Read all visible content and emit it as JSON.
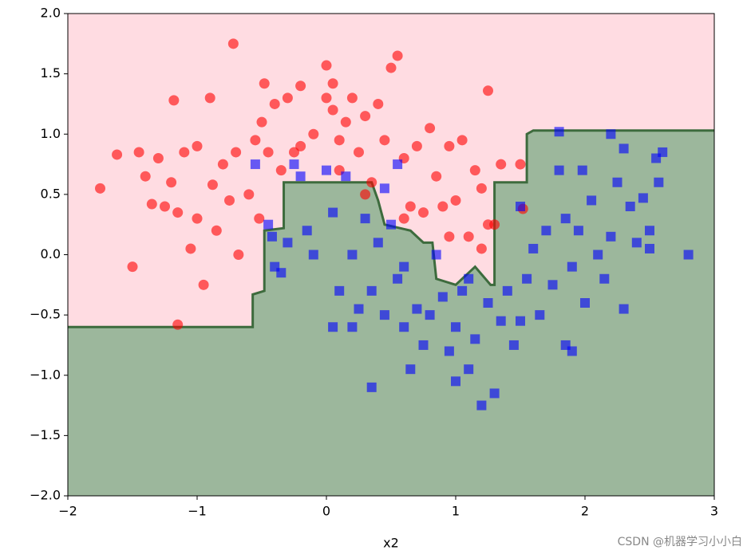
{
  "chart_data": {
    "type": "scatter",
    "xlabel": "x2",
    "xlim": [
      -2,
      3
    ],
    "ylim": [
      -2,
      2
    ],
    "xticks": [
      {
        "value": -2,
        "label": "−2"
      },
      {
        "value": -1,
        "label": "−1"
      },
      0,
      1,
      2,
      3
    ],
    "yticks": [
      {
        "value": -2,
        "label": "−2.0"
      },
      {
        "value": -1.5,
        "label": "−1.5"
      },
      {
        "value": -1,
        "label": "−1.0"
      },
      {
        "value": -0.5,
        "label": "−0.5"
      },
      {
        "value": 0,
        "label": "0.0"
      },
      {
        "value": 0.5,
        "label": "0.5"
      },
      {
        "value": 1,
        "label": "1.0"
      },
      {
        "value": 1.5,
        "label": "1.5"
      },
      {
        "value": 2,
        "label": "2.0"
      }
    ],
    "regions": {
      "upper_color": "#ffdce2",
      "lower_color": "#9cb79c",
      "boundary_color": "#3d6b3d",
      "boundary_x": [
        -2,
        -0.57,
        -0.57,
        -0.48,
        -0.48,
        -0.33,
        -0.33,
        0.35,
        0.4,
        0.45,
        0.65,
        0.75,
        0.82,
        0.85,
        1.0,
        1.15,
        1.27,
        1.3,
        1.3,
        1.55,
        1.55,
        1.6,
        3
      ],
      "boundary_y": [
        -0.6,
        -0.6,
        -0.33,
        -0.3,
        0.2,
        0.22,
        0.6,
        0.6,
        0.45,
        0.25,
        0.2,
        0.1,
        0.1,
        -0.2,
        -0.25,
        -0.1,
        -0.25,
        -0.25,
        0.6,
        0.6,
        1.0,
        1.03,
        1.03
      ]
    },
    "series": [
      {
        "marker": "circle",
        "color": "#ff0000",
        "x": [
          -1.75,
          -1.62,
          -1.5,
          -1.45,
          -1.4,
          -1.35,
          -1.3,
          -1.25,
          -1.2,
          -1.18,
          -1.15,
          -1.15,
          -1.1,
          -1.05,
          -1.0,
          -1.0,
          -0.95,
          -0.9,
          -0.88,
          -0.85,
          -0.8,
          -0.75,
          -0.72,
          -0.7,
          -0.68,
          -0.6,
          -0.55,
          -0.52,
          -0.5,
          -0.48,
          -0.45,
          -0.4,
          -0.35,
          -0.3,
          -0.2,
          -0.2,
          -0.1,
          0.0,
          0.0,
          0.05,
          0.1,
          0.15,
          0.2,
          0.25,
          0.3,
          0.35,
          0.4,
          0.45,
          0.5,
          0.55,
          0.6,
          0.65,
          0.7,
          0.75,
          0.8,
          0.85,
          0.9,
          0.95,
          1.0,
          1.05,
          1.1,
          1.15,
          1.2,
          1.25,
          1.2,
          1.3,
          1.35,
          1.5,
          1.52,
          0.1,
          0.3,
          0.6,
          0.95,
          1.25,
          -0.25,
          0.05
        ],
        "values": [
          0.55,
          0.83,
          -0.1,
          0.85,
          0.65,
          0.42,
          0.8,
          0.4,
          0.6,
          1.28,
          0.35,
          -0.58,
          0.85,
          0.05,
          0.3,
          0.9,
          -0.25,
          1.3,
          0.58,
          0.2,
          0.75,
          0.45,
          1.75,
          0.85,
          0.0,
          0.5,
          0.95,
          0.3,
          1.1,
          1.42,
          0.85,
          1.25,
          0.7,
          1.3,
          1.4,
          0.9,
          1.0,
          1.57,
          1.3,
          1.42,
          0.95,
          1.1,
          1.3,
          0.85,
          1.15,
          0.6,
          1.25,
          0.95,
          1.55,
          1.65,
          0.8,
          0.4,
          0.9,
          0.35,
          1.05,
          0.65,
          0.4,
          0.9,
          0.45,
          0.95,
          0.15,
          0.7,
          0.05,
          1.36,
          0.55,
          0.25,
          0.75,
          0.75,
          0.38,
          0.7,
          0.5,
          0.3,
          0.15,
          0.25,
          0.85,
          1.2
        ]
      },
      {
        "marker": "square",
        "color": "#0000ff",
        "x": [
          -0.55,
          -0.45,
          -0.42,
          -0.4,
          -0.35,
          -0.3,
          -0.25,
          -0.2,
          -0.15,
          -0.1,
          0.0,
          0.05,
          0.1,
          0.15,
          0.2,
          0.2,
          0.25,
          0.3,
          0.35,
          0.4,
          0.45,
          0.45,
          0.5,
          0.55,
          0.55,
          0.6,
          0.65,
          0.7,
          0.75,
          0.8,
          0.85,
          0.9,
          0.95,
          1.0,
          1.0,
          1.05,
          1.1,
          1.15,
          1.2,
          1.25,
          1.3,
          1.35,
          1.4,
          1.45,
          1.5,
          1.5,
          1.55,
          1.6,
          1.65,
          1.7,
          1.75,
          1.8,
          1.8,
          1.85,
          1.9,
          1.95,
          1.98,
          2.0,
          2.05,
          2.1,
          2.15,
          2.2,
          2.25,
          2.3,
          2.35,
          2.4,
          2.45,
          2.5,
          2.55,
          2.57,
          2.6,
          2.2,
          2.3,
          2.5,
          2.8,
          1.85,
          1.9,
          0.35,
          0.05,
          0.6,
          1.1
        ],
        "values": [
          0.75,
          0.25,
          0.15,
          -0.1,
          -0.15,
          0.1,
          0.75,
          0.65,
          0.2,
          0.0,
          0.7,
          0.35,
          -0.3,
          0.65,
          0.0,
          -0.6,
          -0.45,
          0.3,
          -0.3,
          0.1,
          0.55,
          -0.5,
          0.25,
          0.75,
          -0.2,
          -0.6,
          -0.95,
          -0.45,
          -0.75,
          -0.5,
          0.0,
          -0.35,
          -0.8,
          -0.6,
          -1.05,
          -0.3,
          -0.95,
          -0.7,
          -1.25,
          -0.4,
          -1.15,
          -0.55,
          -0.3,
          -0.75,
          0.4,
          -0.55,
          -0.2,
          0.05,
          -0.5,
          0.2,
          -0.25,
          0.7,
          1.02,
          0.3,
          -0.1,
          0.2,
          0.7,
          -0.4,
          0.45,
          0.0,
          -0.2,
          0.15,
          0.6,
          -0.45,
          0.4,
          0.1,
          0.47,
          0.2,
          0.8,
          0.6,
          0.85,
          1.0,
          0.88,
          0.05,
          0.0,
          -0.75,
          -0.8,
          -1.1,
          -0.6,
          -0.1,
          -0.2
        ]
      }
    ],
    "watermark": "CSDN @机器学习小小白"
  }
}
